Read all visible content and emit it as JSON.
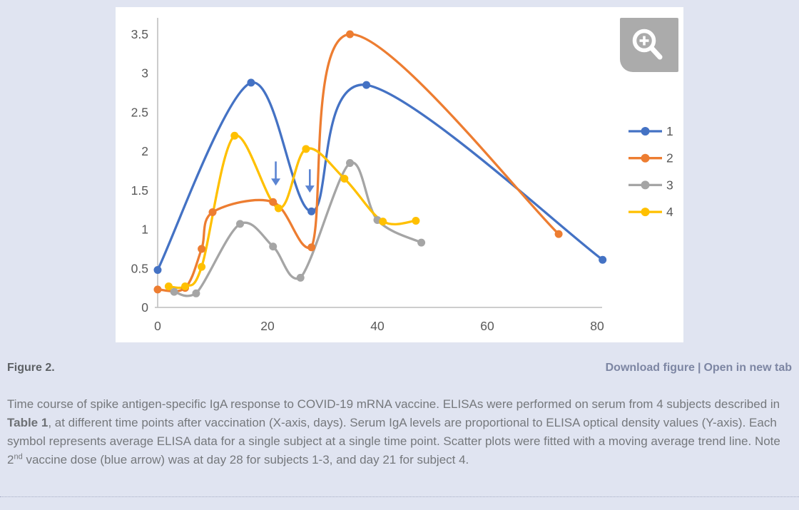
{
  "figure": {
    "label": "Figure 2.",
    "links": {
      "download": "Download figure",
      "separator": "|",
      "open_new_tab": "Open in new tab"
    },
    "zoom_icon": "magnifier-plus-icon"
  },
  "caption": {
    "part1": "Time course of spike antigen-specific IgA response to COVID-19 mRNA vaccine. ELISAs were performed on serum from 4 subjects described in ",
    "table_ref": "Table 1",
    "part2": ", at different time points after vaccination (X-axis, days). Serum IgA levels are proportional to ELISA optical density values (Y-axis). Each symbol represents average ELISA data for a single subject at a single time point. Scatter plots were fitted with a moving average trend line. Note 2",
    "sup": "nd",
    "part3": " vaccine dose (blue arrow) was at day 28 for subjects 1-3, and day 21 for subject 4."
  },
  "chart_data": {
    "type": "line",
    "title": "",
    "xlabel": "",
    "ylabel": "",
    "grid": false,
    "legend_position": "right",
    "xlim": [
      0,
      84
    ],
    "ylim": [
      0,
      3.5
    ],
    "x_ticks": [
      "0",
      "20",
      "40",
      "60",
      "80"
    ],
    "y_ticks": [
      "0",
      "0.5",
      "1",
      "1.5",
      "2",
      "2.5",
      "3",
      "3.5"
    ],
    "axis_color": "#c6c6c6",
    "tick_label_color": "#595959",
    "series": [
      {
        "name": "1",
        "color": "#4472C4",
        "points": [
          [
            0,
            0.48
          ],
          [
            17,
            2.88
          ],
          [
            28,
            1.23
          ],
          [
            38,
            2.85
          ],
          [
            81,
            0.61
          ]
        ]
      },
      {
        "name": "2",
        "color": "#ED7D31",
        "points": [
          [
            0,
            0.23
          ],
          [
            5,
            0.25
          ],
          [
            8,
            0.75
          ],
          [
            10,
            1.22
          ],
          [
            21,
            1.35
          ],
          [
            28,
            0.77
          ],
          [
            35,
            3.5
          ],
          [
            73,
            0.94
          ]
        ]
      },
      {
        "name": "3",
        "color": "#A5A5A5",
        "points": [
          [
            3,
            0.2
          ],
          [
            7,
            0.18
          ],
          [
            15,
            1.07
          ],
          [
            21,
            0.78
          ],
          [
            26,
            0.38
          ],
          [
            35,
            1.85
          ],
          [
            40,
            1.12
          ],
          [
            48,
            0.83
          ]
        ]
      },
      {
        "name": "4",
        "color": "#FFC000",
        "points": [
          [
            2,
            0.27
          ],
          [
            5,
            0.27
          ],
          [
            8,
            0.52
          ],
          [
            14,
            2.2
          ],
          [
            22,
            1.27
          ],
          [
            27,
            2.03
          ],
          [
            34,
            1.65
          ],
          [
            41,
            1.1
          ],
          [
            47,
            1.11
          ]
        ]
      }
    ],
    "annotations": {
      "arrow_color": "#5b84d2",
      "arrows": [
        {
          "day": 21.5,
          "from_value": 1.87,
          "to_value": 1.56
        },
        {
          "day": 27.7,
          "from_value": 1.77,
          "to_value": 1.47
        }
      ]
    }
  }
}
